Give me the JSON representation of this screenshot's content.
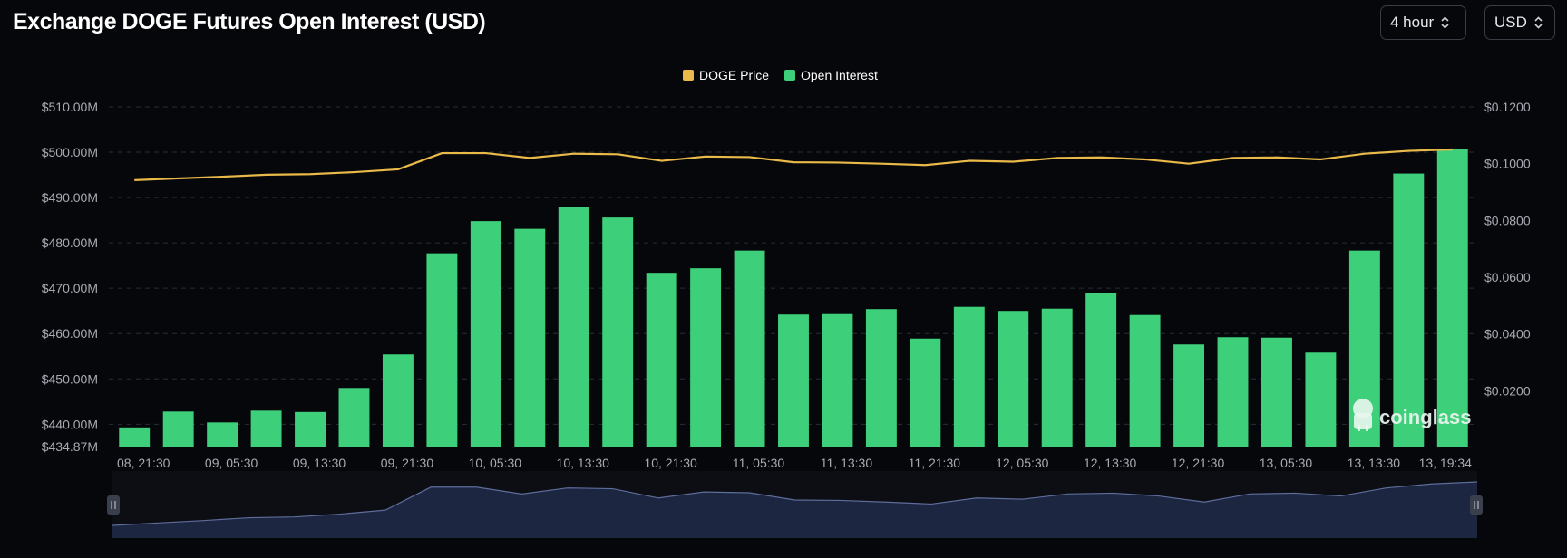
{
  "header": {
    "title": "Exchange DOGE Futures Open Interest (USD)",
    "interval": "4 hour",
    "currency": "USD"
  },
  "watermark": {
    "text": "coinglass"
  },
  "colors": {
    "background": "#06070b",
    "price": "#e9b949",
    "open_interest": "#3ecf7a",
    "navigator_fill": "#1d2640",
    "navigator_line": "#5d6d9a"
  },
  "chart_data": {
    "type": "bar",
    "legend": {
      "placement": "top-center"
    },
    "grid": true,
    "x": [
      "08, 21:30",
      "09, 01:30",
      "09, 05:30",
      "09, 09:30",
      "09, 13:30",
      "09, 17:30",
      "09, 21:30",
      "10, 01:30",
      "10, 05:30",
      "10, 09:30",
      "10, 13:30",
      "10, 17:30",
      "10, 21:30",
      "11, 01:30",
      "11, 05:30",
      "11, 09:30",
      "11, 13:30",
      "11, 17:30",
      "11, 21:30",
      "12, 01:30",
      "12, 05:30",
      "12, 09:30",
      "12, 13:30",
      "12, 17:30",
      "12, 21:30",
      "13, 01:30",
      "13, 05:30",
      "13, 09:30",
      "13, 13:30",
      "13, 17:30",
      "13, 19:34"
    ],
    "x_tick_labels": [
      "08, 21:30",
      "09, 05:30",
      "09, 13:30",
      "09, 21:30",
      "10, 05:30",
      "10, 13:30",
      "10, 21:30",
      "11, 05:30",
      "11, 13:30",
      "11, 21:30",
      "12, 05:30",
      "12, 13:30",
      "12, 21:30",
      "13, 05:30",
      "13, 13:30",
      "13, 19:34"
    ],
    "series": [
      {
        "name": "Open Interest",
        "axis": "left",
        "kind": "bar",
        "values": [
          439.3,
          442.8,
          440.4,
          443.0,
          442.7,
          448.0,
          455.4,
          477.7,
          484.8,
          483.1,
          487.9,
          485.6,
          473.4,
          474.4,
          478.3,
          464.2,
          464.3,
          465.4,
          458.9,
          465.9,
          465.0,
          465.5,
          469.0,
          464.1,
          457.6,
          459.2,
          459.1,
          455.8,
          478.3,
          495.3,
          500.8
        ]
      },
      {
        "name": "DOGE Price",
        "axis": "right",
        "kind": "line",
        "values": [
          0.0942,
          0.0948,
          0.0954,
          0.0961,
          0.0963,
          0.097,
          0.098,
          0.1037,
          0.1037,
          0.102,
          0.1035,
          0.1033,
          0.101,
          0.1025,
          0.1023,
          0.1005,
          0.1004,
          0.1,
          0.0995,
          0.101,
          0.1007,
          0.102,
          0.1022,
          0.1015,
          0.1,
          0.102,
          0.1022,
          0.1015,
          0.1035,
          0.1045,
          0.105
        ]
      }
    ],
    "left_axis": {
      "ylim": [
        434.87,
        510.0
      ],
      "tick_values": [
        434.87,
        440,
        450,
        460,
        470,
        480,
        490,
        500,
        510
      ],
      "tick_labels": [
        "$434.87M",
        "$440.00M",
        "$450.00M",
        "$460.00M",
        "$470.00M",
        "$480.00M",
        "$490.00M",
        "$500.00M",
        "$510.00M"
      ]
    },
    "right_axis": {
      "ylim": [
        0.0,
        0.12
      ],
      "tick_values": [
        0.02,
        0.04,
        0.06,
        0.08,
        0.1,
        0.12
      ],
      "tick_labels": [
        "$0.0200",
        "$0.0400",
        "$0.0600",
        "$0.0800",
        "$0.1000",
        "$0.1200"
      ]
    }
  }
}
